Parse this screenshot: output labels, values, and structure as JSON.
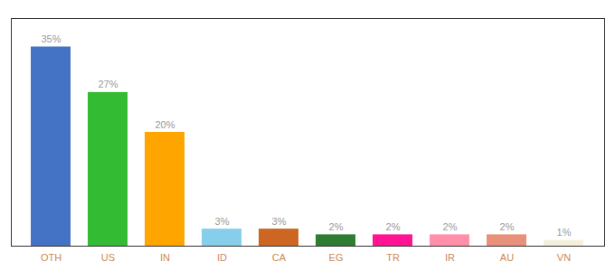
{
  "chart_data": {
    "type": "bar",
    "categories": [
      "OTH",
      "US",
      "IN",
      "ID",
      "CA",
      "EG",
      "TR",
      "IR",
      "AU",
      "VN"
    ],
    "values": [
      35,
      27,
      20,
      3,
      3,
      2,
      2,
      2,
      2,
      1
    ],
    "value_labels": [
      "35%",
      "27%",
      "20%",
      "3%",
      "3%",
      "2%",
      "2%",
      "2%",
      "2%",
      "1%"
    ],
    "data_labels": true,
    "colors": [
      "#4472C4",
      "#33BB33",
      "#FFA500",
      "#87CEEB",
      "#CC6622",
      "#2E7D32",
      "#FF1493",
      "#FF8FAB",
      "#E8907A",
      "#F5F0DC"
    ],
    "ylim": [
      0,
      40
    ],
    "grid": false,
    "tick_labels": "x"
  }
}
